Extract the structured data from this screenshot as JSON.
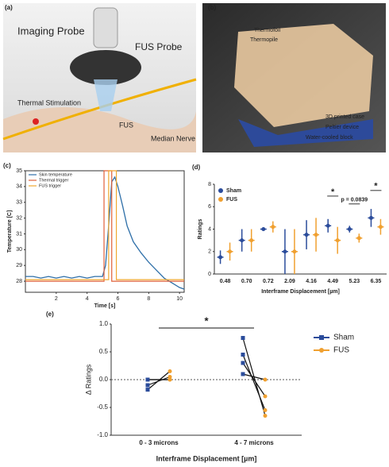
{
  "photos": [
    {
      "panel_label": "(a)",
      "labels": [
        "Imaging Probe",
        "FUS Probe",
        "Thermal Stimulation",
        "FUS",
        "Median Nerve"
      ]
    },
    {
      "panel_label": "(b)",
      "labels": [
        "Thermofoil",
        "Thermopile",
        "3D printed case",
        "Peltier device",
        "Water-cooled block"
      ]
    }
  ],
  "chart_data": [
    {
      "type": "line",
      "panel_label": "(c)",
      "x_label": "Time [s]",
      "y_label": "Temperature [C]",
      "xlim": [
        0,
        10.3
      ],
      "xticks": [
        2,
        4,
        6,
        8,
        10
      ],
      "ylim": [
        27.3,
        35
      ],
      "yticks": [
        28,
        29,
        30,
        31,
        32,
        33,
        34,
        35
      ],
      "legend": "upper left",
      "series": [
        {
          "name": "Skin temperature",
          "color": "#2e6fa8",
          "x": [
            0,
            0.5,
            1,
            1.5,
            2,
            2.5,
            3,
            3.5,
            4,
            4.5,
            5,
            5.2,
            5.4,
            5.6,
            5.8,
            6,
            6.3,
            6.6,
            7,
            7.5,
            8,
            8.5,
            9,
            9.5,
            10,
            10.3
          ],
          "values": [
            28.3,
            28.3,
            28.2,
            28.3,
            28.2,
            28.3,
            28.2,
            28.3,
            28.2,
            28.3,
            28.3,
            29,
            31.5,
            34.3,
            34.6,
            34,
            32.8,
            31.5,
            30.5,
            29.8,
            29.2,
            28.7,
            28.2,
            27.9,
            27.6,
            27.5
          ]
        },
        {
          "name": "Thermal trigger",
          "color": "#e0603a",
          "x": [
            0,
            5.1,
            5.1,
            5.6,
            5.6,
            10.3
          ],
          "values": [
            28,
            28,
            35,
            35,
            28,
            28
          ]
        },
        {
          "name": "FUS trigger",
          "color": "#f0a830",
          "x": [
            0,
            5.4,
            5.4,
            5.9,
            5.9,
            10.3
          ],
          "values": [
            28.1,
            28.1,
            35,
            35,
            28.1,
            28.1
          ]
        }
      ]
    },
    {
      "type": "errorbar",
      "panel_label": "(d)",
      "x_label": "Interframe Displacement [µm]",
      "y_label": "Ratings",
      "categories": [
        "0.48",
        "0.70",
        "0.72",
        "2.09",
        "4.16",
        "4.49",
        "5.23",
        "6.35"
      ],
      "ylim": [
        0,
        8
      ],
      "yticks": [
        0,
        2,
        4,
        6,
        8
      ],
      "legend": "upper left",
      "series": [
        {
          "name": "Sham",
          "color": "#2b4c9b",
          "values": [
            1.5,
            3,
            4,
            2,
            3.5,
            4.3,
            4,
            5
          ],
          "errors": [
            0.6,
            1,
            0,
            2,
            1.3,
            0.6,
            0.3,
            0.8
          ]
        },
        {
          "name": "FUS",
          "color": "#f0a030",
          "values": [
            2,
            3,
            4.2,
            2,
            3.5,
            3,
            3.2,
            4.2
          ],
          "errors": [
            0.8,
            1,
            0.5,
            2,
            1.5,
            1.2,
            0.4,
            0.7
          ]
        }
      ],
      "annotations": [
        "*",
        "p = 0.0839",
        "*"
      ]
    },
    {
      "type": "paired",
      "panel_label": "(e)",
      "x_label": "Interframe Displacement [µm]",
      "y_label": "Δ Ratings",
      "categories": [
        "0 - 3 microns",
        "4 - 7 microns"
      ],
      "ylim": [
        -1,
        1
      ],
      "yticks": [
        {
          "value": -1,
          "label": "-1.0"
        },
        {
          "value": -0.5,
          "label": "-0.5"
        },
        {
          "value": 0,
          "label": "0.0"
        },
        {
          "value": 0.5,
          "label": "0.5"
        },
        {
          "value": 1,
          "label": "1.0"
        }
      ],
      "legend": "right",
      "series": [
        {
          "name": "Sham",
          "color": "#2b4c9b",
          "values": [
            [
              -0.18,
              -0.1,
              0,
              0
            ],
            [
              0.75,
              0.45,
              0.3,
              0.1
            ]
          ]
        },
        {
          "name": "FUS",
          "color": "#f0a030",
          "values": [
            [
              0.15,
              0.05,
              0,
              0
            ],
            [
              -0.65,
              -0.55,
              -0.3,
              0
            ]
          ]
        }
      ],
      "annotations": [
        "*"
      ]
    }
  ]
}
